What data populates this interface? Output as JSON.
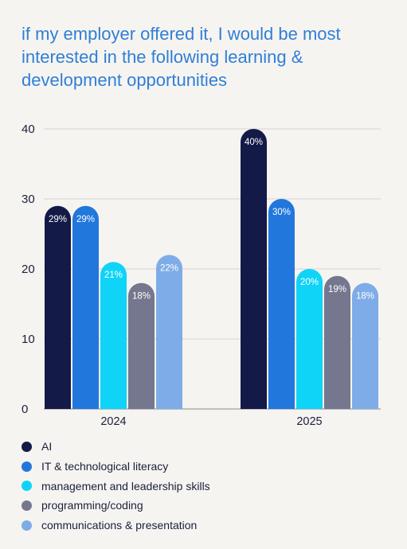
{
  "chart_data": {
    "type": "bar",
    "title": "if my employer offered it, I would be most interested in the following learning & development opportunities",
    "categories": [
      "2024",
      "2025"
    ],
    "series": [
      {
        "name": "AI",
        "color": "#131a47",
        "values": [
          29,
          40
        ]
      },
      {
        "name": "IT & technological literacy",
        "color": "#2277dc",
        "values": [
          29,
          30
        ]
      },
      {
        "name": "management and leadership skills",
        "color": "#0fd4f7",
        "values": [
          21,
          20
        ]
      },
      {
        "name": "programming/coding",
        "color": "#75778f",
        "values": [
          18,
          19
        ]
      },
      {
        "name": "communications & presentation",
        "color": "#7eace8",
        "values": [
          22,
          18
        ]
      }
    ],
    "value_labels": [
      [
        "29%",
        "29%",
        "21%",
        "18%",
        "22%"
      ],
      [
        "40%",
        "30%",
        "20%",
        "19%",
        "18%"
      ]
    ],
    "yticks": [
      "0",
      "10",
      "20",
      "30",
      "40"
    ],
    "ylim": [
      0,
      40
    ],
    "grid": true,
    "legend_position": "bottom"
  }
}
